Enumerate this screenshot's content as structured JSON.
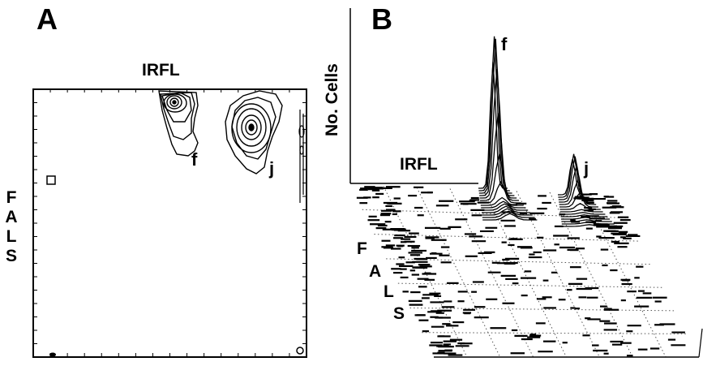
{
  "chart_data": [
    {
      "type": "contour",
      "panel": "A",
      "xlabel": "IRFL",
      "ylabel": "FALS",
      "populations": [
        {
          "name": "f",
          "x": 0.52,
          "y": 0.92
        },
        {
          "name": "j",
          "x": 0.8,
          "y": 0.85
        }
      ]
    },
    {
      "type": "surface",
      "panel": "B",
      "zlabel": "No. Cells",
      "xlabel": "IRFL",
      "ylabel": "FALS",
      "peaks": [
        {
          "name": "f",
          "height": 1.0
        },
        {
          "name": "j",
          "height": 0.28
        }
      ]
    }
  ],
  "panelA": {
    "letter": "A",
    "xlabel": "IRFL",
    "ylabel_letters": [
      "F",
      "A",
      "L",
      "S"
    ]
  },
  "panelB": {
    "letter": "B",
    "zlabel": "No. Cells",
    "xlabel": "IRFL",
    "ylabel_letters": [
      "F",
      "A",
      "L",
      "S"
    ]
  }
}
